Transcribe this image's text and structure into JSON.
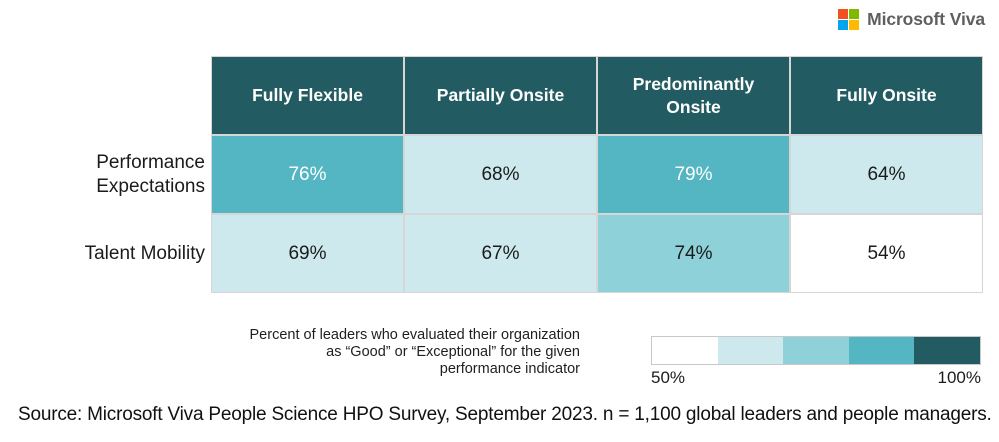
{
  "logo": {
    "text": "Microsoft Viva",
    "square_colors": [
      "#f25022",
      "#7fba00",
      "#00a4ef",
      "#ffb900"
    ]
  },
  "palette": {
    "dark": "#225b62",
    "mid": "#53b6c2",
    "midlight": "#8ed1d9",
    "light": "#cde9ee",
    "white": "#ffffff"
  },
  "chart_data": {
    "type": "heatmap",
    "columns": [
      "Fully Flexible",
      "Partially Onsite",
      "Predominantly Onsite",
      "Fully Onsite"
    ],
    "rows": [
      {
        "label": "Performance Expectations",
        "values": [
          "76%",
          "68%",
          "79%",
          "64%"
        ],
        "numeric_values": [
          76,
          68,
          79,
          64
        ],
        "cell_colors": [
          "mid",
          "light",
          "mid",
          "light"
        ],
        "text_colors": [
          "white",
          "dark",
          "white",
          "dark"
        ]
      },
      {
        "label": "Talent Mobility",
        "values": [
          "69%",
          "67%",
          "74%",
          "54%"
        ],
        "numeric_values": [
          69,
          67,
          74,
          54
        ],
        "cell_colors": [
          "light",
          "light",
          "midlight",
          "white"
        ],
        "text_colors": [
          "dark",
          "dark",
          "dark",
          "dark"
        ]
      }
    ],
    "legend": {
      "min_label": "50%",
      "max_label": "100%",
      "range": [
        50,
        100
      ],
      "colors": [
        "white",
        "light",
        "midlight",
        "mid",
        "dark"
      ],
      "position": "bottom-right"
    }
  },
  "caption": {
    "lines": [
      "Percent of leaders who evaluated their organization",
      "as “Good” or “Exceptional” for the given",
      "performance indicator"
    ]
  },
  "source": "Source: Microsoft Viva People Science HPO Survey, September 2023. n = 1,100 global leaders and people managers."
}
